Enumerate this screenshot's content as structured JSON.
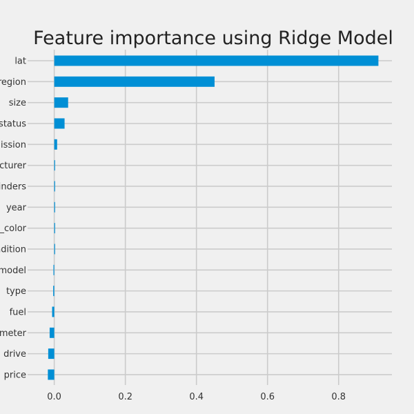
{
  "chart_data": {
    "type": "bar",
    "orientation": "horizontal",
    "title": "Feature importance using Ridge Model",
    "xlabel": "",
    "ylabel": "",
    "categories": [
      "lat",
      "region",
      "size",
      "status",
      "mission",
      "acturer",
      "inders",
      "year",
      "_color",
      "ndition",
      "model",
      "type",
      "fuel",
      "ometer",
      "drive",
      "price"
    ],
    "values": [
      0.912,
      0.451,
      0.039,
      0.029,
      0.008,
      0.002,
      0.001,
      0.0005,
      0.0005,
      0.0005,
      -0.002,
      -0.003,
      -0.006,
      -0.013,
      -0.017,
      -0.018
    ],
    "xlim": [
      -0.075,
      0.95
    ],
    "xticks": [
      "0.0",
      "0.2",
      "0.4",
      "0.6",
      "0.8"
    ],
    "xtick_values": [
      0.0,
      0.2,
      0.4,
      0.6,
      0.8
    ],
    "grid": true,
    "legend": false,
    "bar_color": "#008fd5",
    "background_color": "#f0f0f0",
    "grid_color": "#cbcbcb"
  }
}
